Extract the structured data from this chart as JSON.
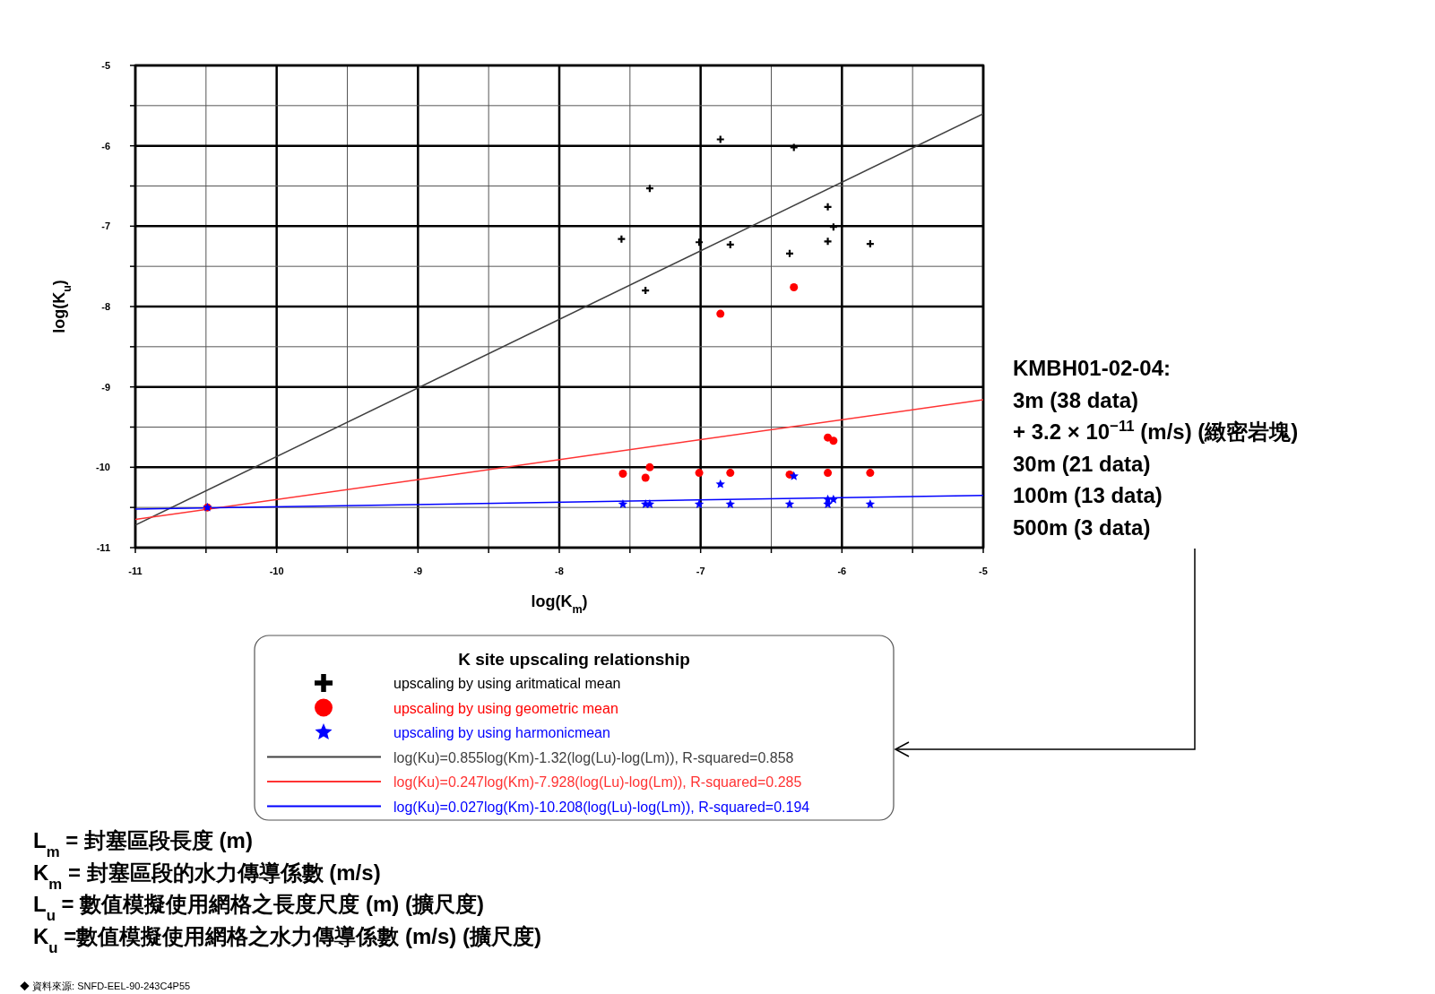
{
  "chart_data": {
    "type": "scatter",
    "xlabel": "log(K$_{m}$)",
    "ylabel": "log(K$_{u}$)",
    "xlim": [
      -11,
      -5
    ],
    "ylim": [
      -11,
      -5
    ],
    "xticks": [
      -11,
      {
        "value": -10.5,
        "label": null
      },
      -10,
      {
        "value": -9.5,
        "label": null
      },
      -9,
      {
        "value": -8.5,
        "label": null
      },
      -8,
      {
        "value": -7.5,
        "label": null
      },
      -7,
      {
        "value": -6.5,
        "label": null
      },
      -6,
      {
        "value": -5.5,
        "label": null
      },
      -5
    ],
    "yticks": [
      -11,
      {
        "value": -10.5,
        "label": null
      },
      -10,
      {
        "value": -9.5,
        "label": null
      },
      -9,
      {
        "value": -8.5,
        "label": null
      },
      -8,
      {
        "value": -7.5,
        "label": null
      },
      -7,
      {
        "value": -6.5,
        "label": null
      },
      -6,
      {
        "value": -5.5,
        "label": null
      },
      -5
    ],
    "grid": true,
    "legend": "bottom",
    "legend_title": "K site upscaling relationship",
    "series": [
      {
        "name": "upscaling by using aritmatical mean",
        "marker": "cross",
        "color": "#000000",
        "x": [
          -6.86,
          -6.34,
          -7.36,
          -7.56,
          -7.01,
          -6.79,
          -7.39,
          -6.37,
          -6.1,
          -6.06,
          -6.1,
          -5.8
        ],
        "values": [
          -5.92,
          -6.02,
          -6.53,
          -7.16,
          -7.2,
          -7.23,
          -7.8,
          -7.34,
          -6.76,
          -7.01,
          -7.19,
          -7.22
        ]
      },
      {
        "name": "upscaling by using geometric mean",
        "marker": "circle",
        "color": "#ff0000",
        "x": [
          -10.49,
          -6.86,
          -6.34,
          -7.55,
          -7.39,
          -7.36,
          -7.01,
          -6.79,
          -6.37,
          -6.1,
          -6.06,
          -6.1,
          -5.8
        ],
        "values": [
          -10.5,
          -8.09,
          -7.76,
          -10.08,
          -10.13,
          -10.0,
          -10.07,
          -10.07,
          -10.09,
          -9.63,
          -9.67,
          -10.07,
          -10.07
        ]
      },
      {
        "name": "upscaling by using harmonicmean",
        "marker": "star",
        "color": "#0000ff",
        "x": [
          -10.49,
          -6.86,
          -6.34,
          -7.55,
          -7.39,
          -7.36,
          -7.01,
          -6.79,
          -6.37,
          -6.1,
          -6.1,
          -6.06,
          -5.8
        ],
        "values": [
          -10.5,
          -10.21,
          -10.11,
          -10.46,
          -10.46,
          -10.46,
          -10.46,
          -10.46,
          -10.46,
          -10.4,
          -10.46,
          -10.4,
          -10.46
        ]
      },
      {
        "name": "log(Ku)=0.855log(Km)-1.32(log(Lu)-log(Lm)), R-squared=0.858",
        "type": "line",
        "color": "#404040",
        "x": [
          -11,
          -5
        ],
        "values": [
          -10.72,
          -5.6
        ]
      },
      {
        "name": "log(Ku)=0.247log(Km)-7.928(log(Lu)-log(Lm)), R-squared=0.285",
        "type": "line",
        "color": "#ff3333",
        "x": [
          -11,
          -5
        ],
        "values": [
          -10.65,
          -9.16
        ]
      },
      {
        "name": "log(Ku)=0.027log(Km)-10.208(log(Lu)-log(Lm)), R-squared=0.194",
        "type": "line",
        "color": "#0000ff",
        "x": [
          -11,
          -5
        ],
        "values": [
          -10.52,
          -10.35
        ]
      }
    ],
    "annotations": [
      "KMBH01-02-04:\n3m (38 data)\n+ 3.2 × 10$^{−11}$ (m/s) (緻密岩塊)\n30m (21 data)\n100m (13 data)\n500m  (3 data)",
      "L$_{m}$ = 封塞區段長度 (m)\nK$_{m}$ = 封塞區段的水力傳導係數 (m/s)\nL$_{u}$ = 數值模擬使用網格之長度尺度 (m) (擴尺度)\nK$_{u}$ =數值模擬使用網格之水力傳導係數 (m/s)  (擴尺度)",
      "◆    資料來源: SNFD-EEL-90-243C4P55"
    ]
  }
}
